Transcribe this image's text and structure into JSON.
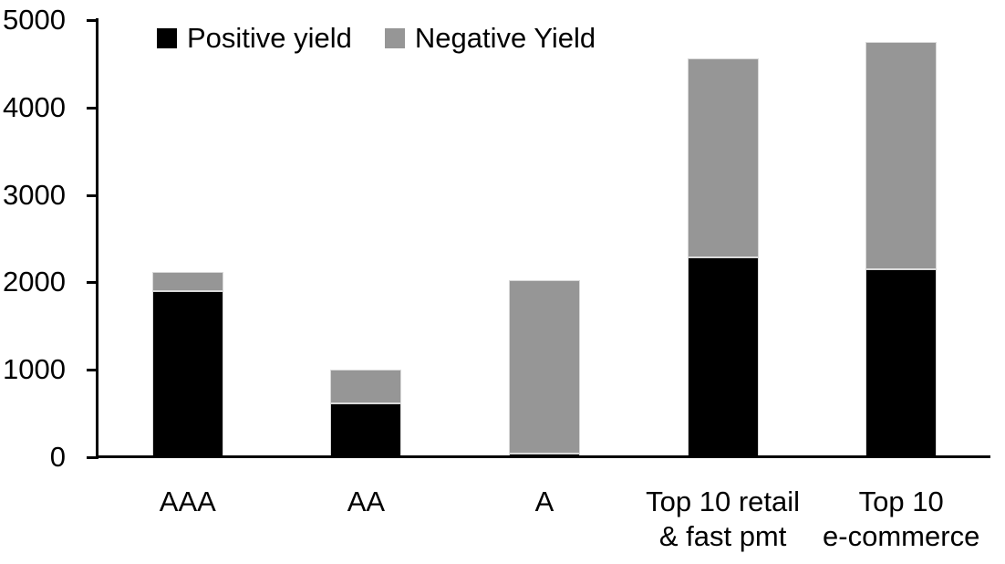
{
  "chart_data": {
    "type": "bar",
    "stacked": true,
    "title": "",
    "xlabel": "",
    "ylabel": "",
    "categories": [
      "AAA",
      "AA",
      "A",
      "Top 10 retail\n& fast pmt",
      "Top 10\ne-commerce"
    ],
    "series": [
      {
        "name": "Positive yield",
        "color": "#000000",
        "values": [
          1900,
          620,
          40,
          2290,
          2150
        ]
      },
      {
        "name": "Negative Yield",
        "color": "#969696",
        "values": [
          220,
          380,
          1990,
          2270,
          2600
        ]
      }
    ],
    "ylim": [
      0,
      5000
    ],
    "yticks": [
      0,
      1000,
      2000,
      3000,
      4000,
      5000
    ],
    "legend_position": "top",
    "grid": false
  },
  "colors": {
    "axis": "#000000",
    "background": "#ffffff",
    "bar_outline": "#d9d9d9"
  }
}
